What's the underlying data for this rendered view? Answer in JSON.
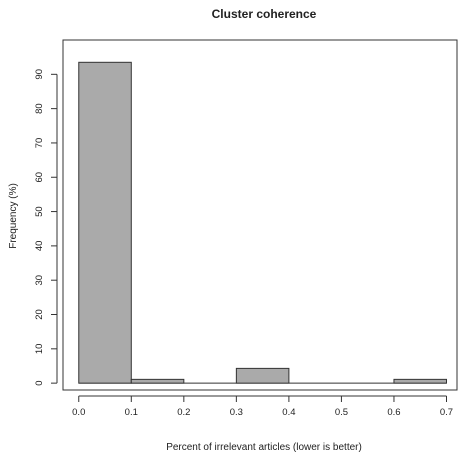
{
  "chart_data": {
    "type": "bar",
    "title": "Cluster coherence",
    "xlabel": "Percent of irrelevant articles (lower is better)",
    "ylabel": "Frequency (%)",
    "bins": [
      {
        "from": 0.0,
        "to": 0.1,
        "value": 93.5
      },
      {
        "from": 0.1,
        "to": 0.2,
        "value": 1.1
      },
      {
        "from": 0.2,
        "to": 0.3,
        "value": 0
      },
      {
        "from": 0.3,
        "to": 0.4,
        "value": 4.3
      },
      {
        "from": 0.4,
        "to": 0.5,
        "value": 0
      },
      {
        "from": 0.5,
        "to": 0.6,
        "value": 0
      },
      {
        "from": 0.6,
        "to": 0.7,
        "value": 1.1
      }
    ],
    "xlim": [
      -0.03,
      0.72
    ],
    "ylim": [
      -2,
      100
    ],
    "xticks": [
      "0.0",
      "0.1",
      "0.2",
      "0.3",
      "0.4",
      "0.5",
      "0.6",
      "0.7"
    ],
    "yticks": [
      "0",
      "10",
      "20",
      "30",
      "40",
      "50",
      "60",
      "70",
      "80",
      "90"
    ],
    "bar_color": "#aaaaaa",
    "grid": false,
    "legend": false
  }
}
